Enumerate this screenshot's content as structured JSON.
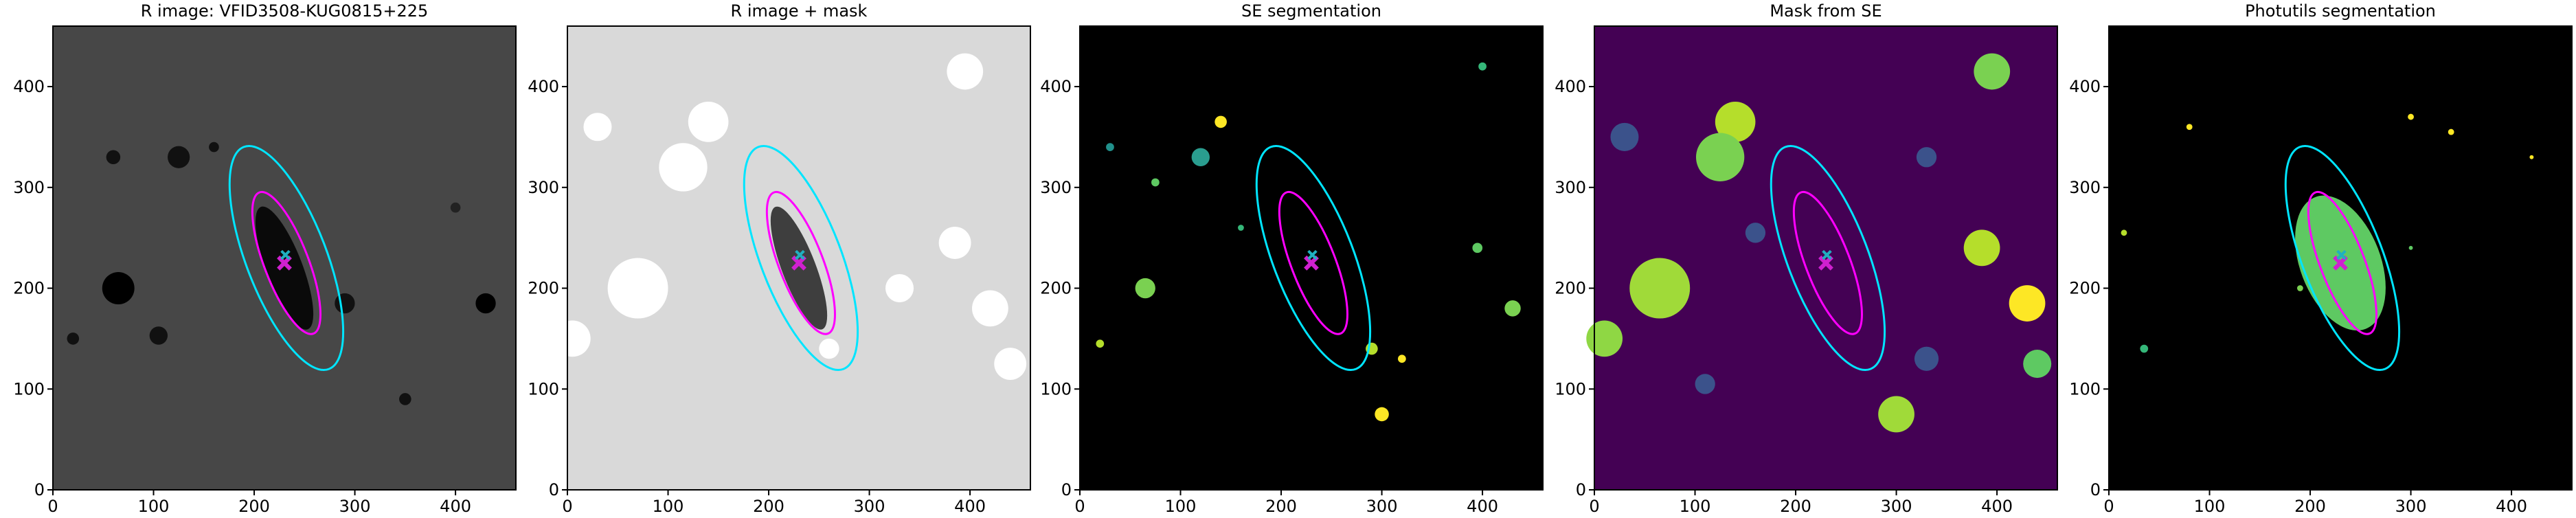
{
  "chart_data": [
    {
      "type": "image",
      "title": "R image: VFID3508-KUG0815+225",
      "background": "#474747",
      "xlim": [
        0,
        460
      ],
      "ylim": [
        0,
        460
      ],
      "xticks": [
        0,
        100,
        200,
        300,
        400
      ],
      "yticks": [
        0,
        100,
        200,
        300,
        400
      ]
    },
    {
      "type": "image",
      "title": "R image + mask",
      "background": "#d9d9d9",
      "xlim": [
        0,
        460
      ],
      "ylim": [
        0,
        460
      ],
      "xticks": [
        0,
        100,
        200,
        300,
        400
      ],
      "yticks": [
        0,
        100,
        200,
        300,
        400
      ]
    },
    {
      "type": "image",
      "title": "SE segmentation",
      "background": "#000000",
      "xlim": [
        0,
        460
      ],
      "ylim": [
        0,
        460
      ],
      "xticks": [
        0,
        100,
        200,
        300,
        400
      ],
      "yticks": [
        0,
        100,
        200,
        300,
        400
      ]
    },
    {
      "type": "image",
      "title": "Mask from SE",
      "background": "#440154",
      "xlim": [
        0,
        460
      ],
      "ylim": [
        0,
        460
      ],
      "xticks": [
        0,
        100,
        200,
        300,
        400
      ],
      "yticks": [
        0,
        100,
        200,
        300,
        400
      ]
    },
    {
      "type": "image",
      "title": "Photutils segmentation",
      "background": "#000000",
      "xlim": [
        0,
        460
      ],
      "ylim": [
        0,
        460
      ],
      "xticks": [
        0,
        100,
        200,
        300,
        400
      ],
      "yticks": [
        0,
        100,
        200,
        300,
        400
      ]
    }
  ]
}
